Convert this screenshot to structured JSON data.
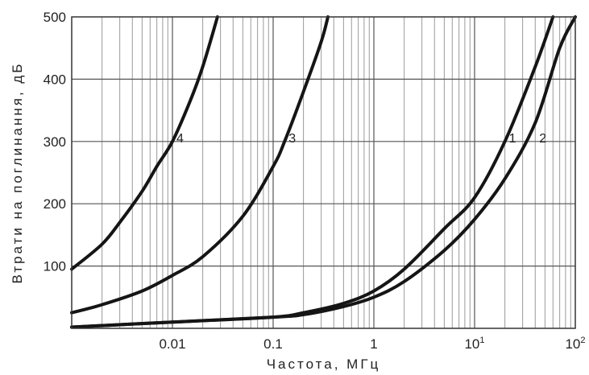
{
  "chart_data": {
    "type": "line",
    "xlabel": "Частота, МГц",
    "ylabel": "Втрати на поглинання, дБ",
    "x_scale": "log",
    "xlim": [
      0.001,
      100
    ],
    "ylim": [
      0,
      500
    ],
    "grid": true,
    "x_ticks": [
      {
        "value": 0.01,
        "label": "0.01"
      },
      {
        "value": 0.1,
        "label": "0.1"
      },
      {
        "value": 1,
        "label": "1"
      },
      {
        "value": 10,
        "label": "10",
        "sup": "1"
      },
      {
        "value": 100,
        "label": "10",
        "sup": "2"
      }
    ],
    "y_ticks": [
      {
        "value": 100,
        "label": "100"
      },
      {
        "value": 200,
        "label": "200"
      },
      {
        "value": 300,
        "label": "300"
      },
      {
        "value": 400,
        "label": "400"
      },
      {
        "value": 500,
        "label": "500"
      }
    ],
    "series": [
      {
        "name": "4",
        "points": [
          [
            0.001,
            95
          ],
          [
            0.002,
            135
          ],
          [
            0.003,
            170
          ],
          [
            0.005,
            220
          ],
          [
            0.007,
            260
          ],
          [
            0.01,
            300
          ],
          [
            0.015,
            365
          ],
          [
            0.02,
            420
          ],
          [
            0.028,
            500
          ]
        ]
      },
      {
        "name": "3",
        "points": [
          [
            0.001,
            25
          ],
          [
            0.002,
            38
          ],
          [
            0.005,
            60
          ],
          [
            0.01,
            85
          ],
          [
            0.02,
            115
          ],
          [
            0.05,
            180
          ],
          [
            0.1,
            260
          ],
          [
            0.13,
            300
          ],
          [
            0.2,
            380
          ],
          [
            0.3,
            460
          ],
          [
            0.35,
            500
          ]
        ]
      },
      {
        "name": "1",
        "points": [
          [
            0.001,
            2
          ],
          [
            0.01,
            10
          ],
          [
            0.1,
            18
          ],
          [
            0.2,
            25
          ],
          [
            0.5,
            40
          ],
          [
            1,
            60
          ],
          [
            2,
            95
          ],
          [
            5,
            160
          ],
          [
            10,
            210
          ],
          [
            20,
            300
          ],
          [
            40,
            420
          ],
          [
            60,
            500
          ]
        ]
      },
      {
        "name": "2",
        "points": [
          [
            0.001,
            2
          ],
          [
            0.01,
            10
          ],
          [
            0.1,
            18
          ],
          [
            0.2,
            22
          ],
          [
            0.5,
            35
          ],
          [
            1,
            50
          ],
          [
            2,
            75
          ],
          [
            5,
            125
          ],
          [
            10,
            175
          ],
          [
            20,
            240
          ],
          [
            40,
            330
          ],
          [
            70,
            450
          ],
          [
            100,
            500
          ]
        ]
      }
    ]
  }
}
